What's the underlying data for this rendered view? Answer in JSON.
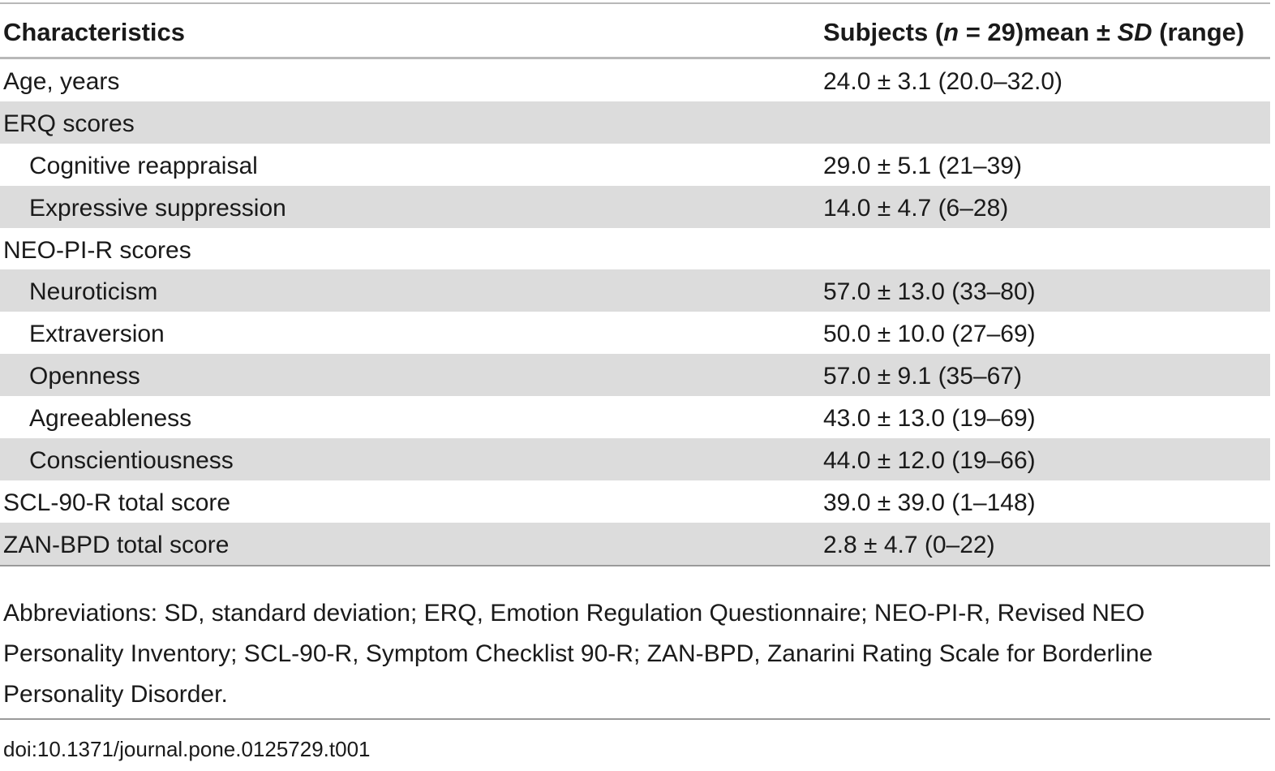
{
  "table": {
    "header": {
      "col1": "Characteristics",
      "col2_pre": "Subjects (",
      "col2_n": "n",
      "col2_mid": " = 29)mean ± ",
      "col2_sd": "SD",
      "col2_post": " (range)"
    },
    "rows": [
      {
        "label": "Age, years",
        "value": "24.0 ± 3.1 (20.0–32.0)"
      },
      {
        "label": "ERQ scores",
        "value": ""
      },
      {
        "label": "Cognitive reappraisal",
        "value": "29.0 ± 5.1 (21–39)"
      },
      {
        "label": "Expressive suppression",
        "value": "14.0 ± 4.7 (6–28)"
      },
      {
        "label": "NEO-PI-R scores",
        "value": ""
      },
      {
        "label": "Neuroticism",
        "value": "57.0 ± 13.0 (33–80)"
      },
      {
        "label": "Extraversion",
        "value": "50.0 ± 10.0 (27–69)"
      },
      {
        "label": "Openness",
        "value": "57.0 ± 9.1 (35–67)"
      },
      {
        "label": "Agreeableness",
        "value": "43.0 ± 13.0 (19–69)"
      },
      {
        "label": "Conscientiousness",
        "value": "44.0 ± 12.0 (19–66)"
      },
      {
        "label": "SCL-90-R total score",
        "value": "39.0 ± 39.0 (1–148)"
      },
      {
        "label": "ZAN-BPD total score",
        "value": "2.8 ± 4.7 (0–22)"
      }
    ]
  },
  "footnote": "Abbreviations: SD, standard deviation; ERQ, Emotion Regulation Questionnaire; NEO-PI-R, Revised NEO Personality Inventory; SCL-90-R, Symptom Checklist 90-R; ZAN-BPD, Zanarini Rating Scale for Borderline Personality Disorder.",
  "doi": "doi:10.1371/journal.pone.0125729.t001",
  "colors": {
    "shaded_row": "#dcdcdc",
    "rule": "#b8b8b8",
    "text": "#1a1a1a"
  }
}
